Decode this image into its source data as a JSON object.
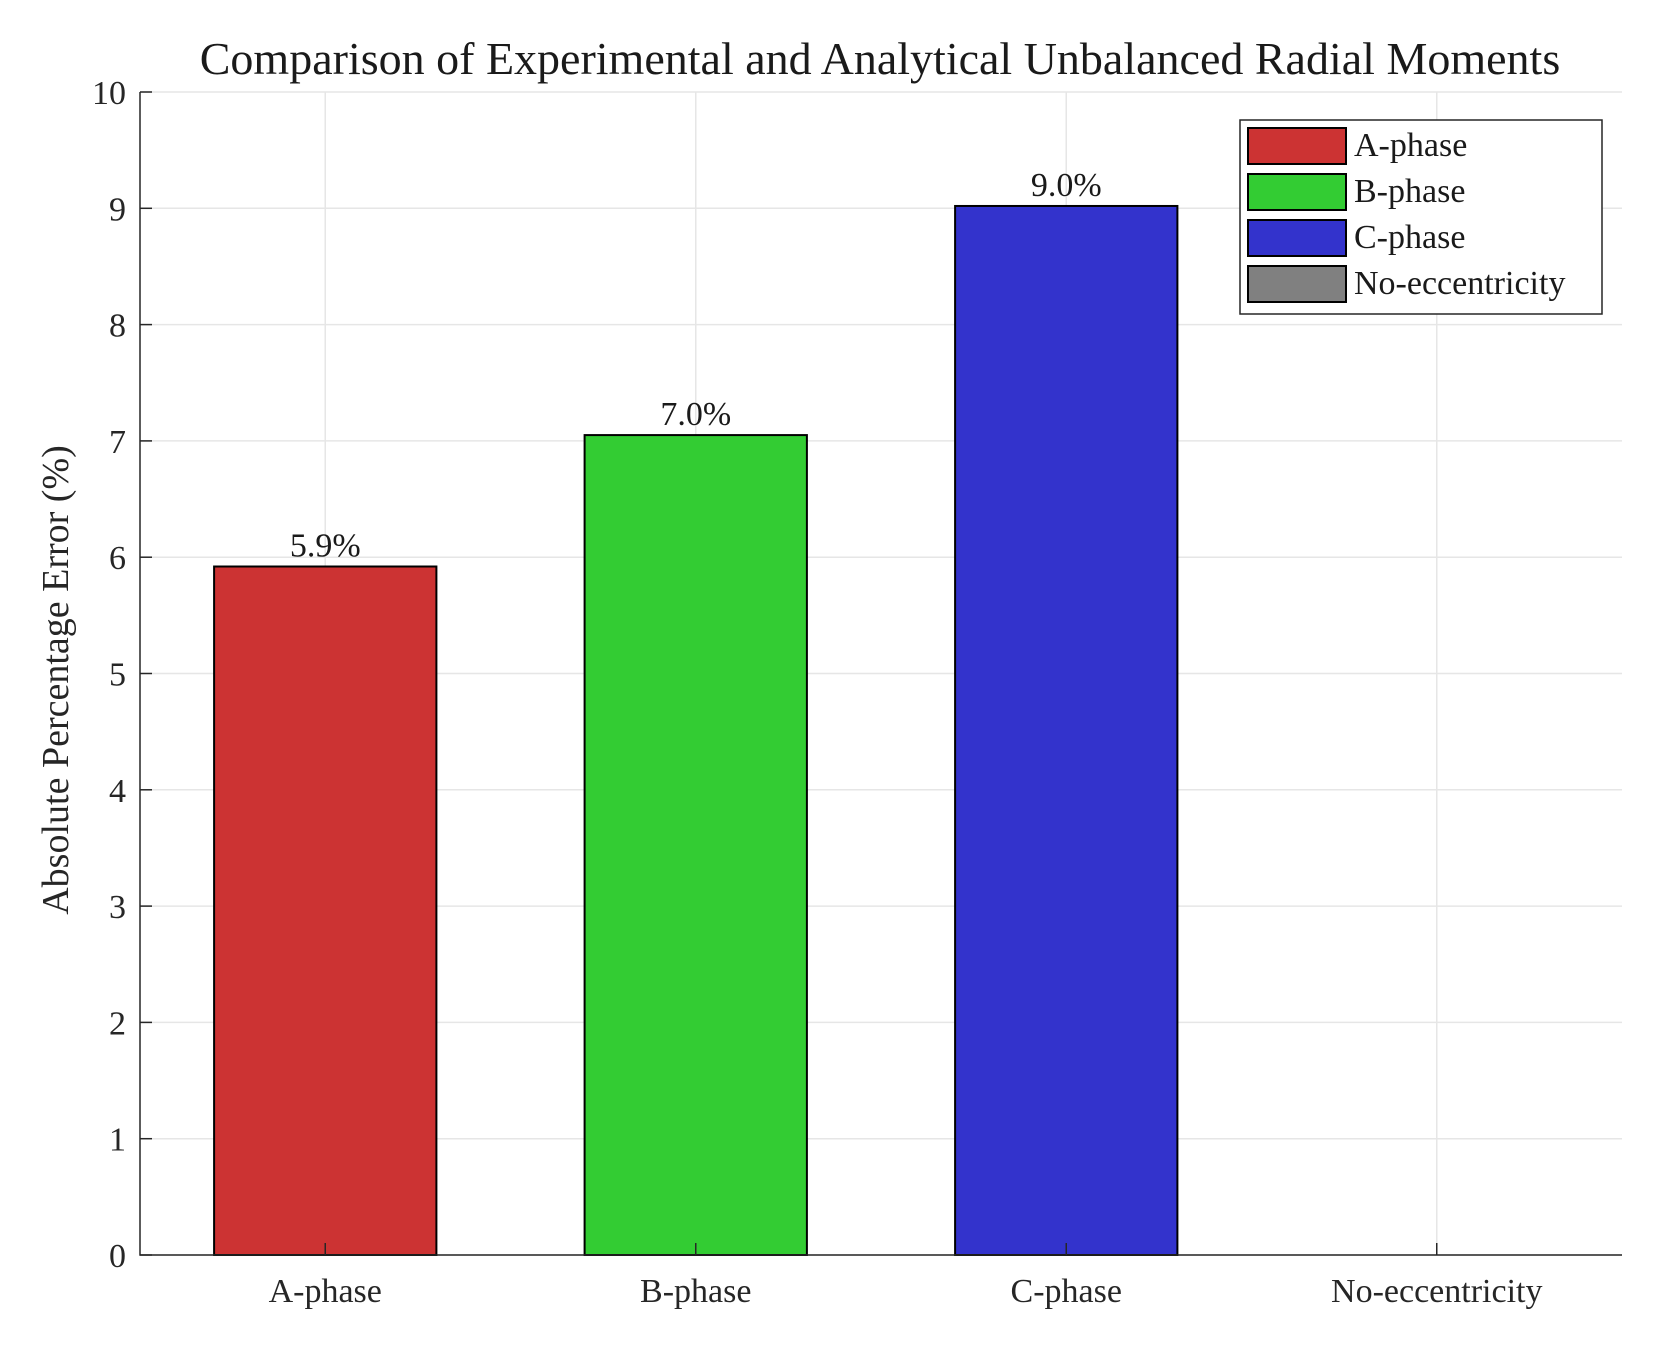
{
  "chart_data": {
    "type": "bar",
    "title": "Comparison of Experimental and Analytical Unbalanced Radial Moments",
    "xlabel": "",
    "ylabel": "Absolute Percentage Error (%)",
    "ylim": [
      0,
      10
    ],
    "yticks": [
      "0",
      "1",
      "2",
      "3",
      "4",
      "5",
      "6",
      "7",
      "8",
      "9",
      "10"
    ],
    "categories": [
      "A-phase",
      "B-phase",
      "C-phase",
      "No-eccentricity"
    ],
    "values": [
      5.92,
      7.05,
      9.02,
      0
    ],
    "data_labels": [
      "5.9%",
      "7.0%",
      "9.0%",
      ""
    ],
    "colors": [
      "#cc3333",
      "#33cc33",
      "#3333cc",
      "#808080"
    ],
    "grid": true,
    "legend": {
      "placement": "top-right",
      "entries": [
        "A-phase",
        "B-phase",
        "C-phase",
        "No-eccentricity"
      ]
    }
  }
}
